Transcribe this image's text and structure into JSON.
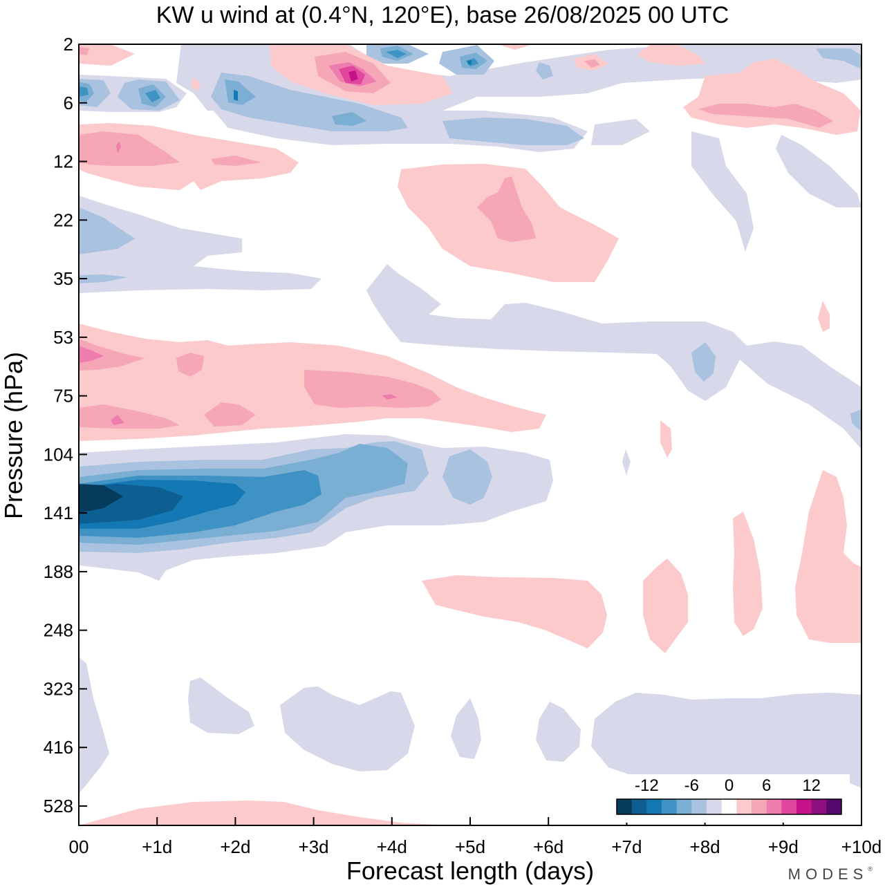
{
  "title": "KW u wind at (0.4°N, 120°E),  base 26/08/2025  00 UTC",
  "brand": "MODES",
  "brand_mark": "®",
  "chart_data": {
    "type": "contour",
    "title": "KW u wind at (0.4°N, 120°E),  base 26/08/2025  00 UTC",
    "xlabel": "Forecast length (days)",
    "ylabel": "Pressure (hPa)",
    "x_ticks": [
      "00",
      "+1d",
      "+2d",
      "+3d",
      "+4d",
      "+5d",
      "+6d",
      "+7d",
      "+8d",
      "+9d",
      "+10d"
    ],
    "xlim": [
      0,
      10
    ],
    "y_ticks": [
      "2",
      "6",
      "12",
      "22",
      "35",
      "53",
      "75",
      "104",
      "141",
      "188",
      "248",
      "323",
      "416",
      "528"
    ],
    "y_scale": "log-pressure",
    "ylim": [
      2,
      600
    ],
    "colorbar": {
      "labels": [
        "-12",
        "-6",
        "0",
        "6",
        "12"
      ],
      "levels": [
        -16,
        -14,
        -12,
        -10,
        -8,
        -6,
        -4,
        -2,
        2,
        4,
        6,
        8,
        10,
        12,
        14,
        16
      ],
      "colors": [
        "#073b5c",
        "#0d5f92",
        "#1478b5",
        "#3f93c4",
        "#7aaed2",
        "#a9c2df",
        "#d7d8e9",
        "#ffffff",
        "#fccacb",
        "#f6a7b7",
        "#ef7cae",
        "#e0479c",
        "#c4138a",
        "#8e0f7e",
        "#55096c"
      ],
      "position": "bottom-right"
    },
    "features": [
      {
        "name": "easterly jet core",
        "sign": "negative",
        "x_range_days": [
          0,
          6
        ],
        "pressure_hPa": 141,
        "min_value": -16
      },
      {
        "name": "westerly band",
        "sign": "positive",
        "x_range_days": [
          0,
          6
        ],
        "pressure_hPa": [
          53,
          100
        ],
        "max_value": 10
      },
      {
        "name": "upper stratosphere westerly",
        "sign": "positive",
        "x_range_days": [
          2.5,
          4.5
        ],
        "pressure_hPa": 4,
        "max_value": 12
      },
      {
        "name": "tropospheric easterly",
        "sign": "negative",
        "x_range_days": [
          0,
          10
        ],
        "pressure_hPa": [
          323,
          528
        ],
        "min_value": -2
      },
      {
        "name": "mid stratosphere westerly",
        "sign": "positive",
        "x_range_days": [
          4,
          7
        ],
        "pressure_hPa": [
          14,
          35
        ],
        "max_value": 6
      }
    ]
  }
}
